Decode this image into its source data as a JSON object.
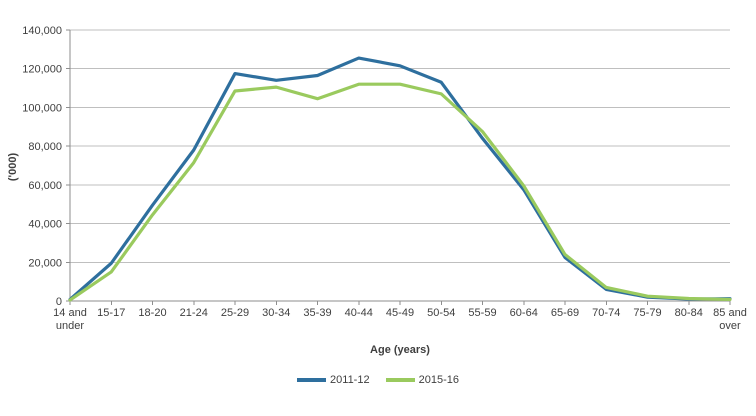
{
  "chart_data": {
    "type": "line",
    "title": "",
    "ylabel": "('000)",
    "xlabel": "Age (years)",
    "ylim": [
      0,
      140000
    ],
    "ytick_step": 20000,
    "ytick_labels": [
      "0",
      "20,000",
      "40,000",
      "60,000",
      "80,000",
      "100,000",
      "120,000",
      "140,000"
    ],
    "grid": true,
    "legend_position": "bottom-center",
    "categories": [
      "14 and under",
      "15-17",
      "18-20",
      "21-24",
      "25-29",
      "30-34",
      "35-39",
      "40-44",
      "45-49",
      "50-54",
      "55-59",
      "60-64",
      "65-69",
      "70-74",
      "75-79",
      "80-84",
      "85 and over"
    ],
    "series": [
      {
        "name": "2011-12",
        "color": "#2e6f9e",
        "values": [
          800,
          19500,
          49500,
          78000,
          117500,
          114000,
          116500,
          125500,
          121500,
          113000,
          84000,
          57500,
          22500,
          6000,
          2000,
          1000,
          1200
        ]
      },
      {
        "name": "2015-16",
        "color": "#9aca5e",
        "values": [
          500,
          15000,
          44500,
          71500,
          108500,
          110500,
          104500,
          112000,
          112000,
          107000,
          87500,
          59500,
          24000,
          7000,
          2500,
          1300,
          800
        ]
      }
    ]
  },
  "colors": {
    "grid": "#bfbfbf",
    "axis": "#8e8e8e",
    "text": "#3f3f3f"
  }
}
